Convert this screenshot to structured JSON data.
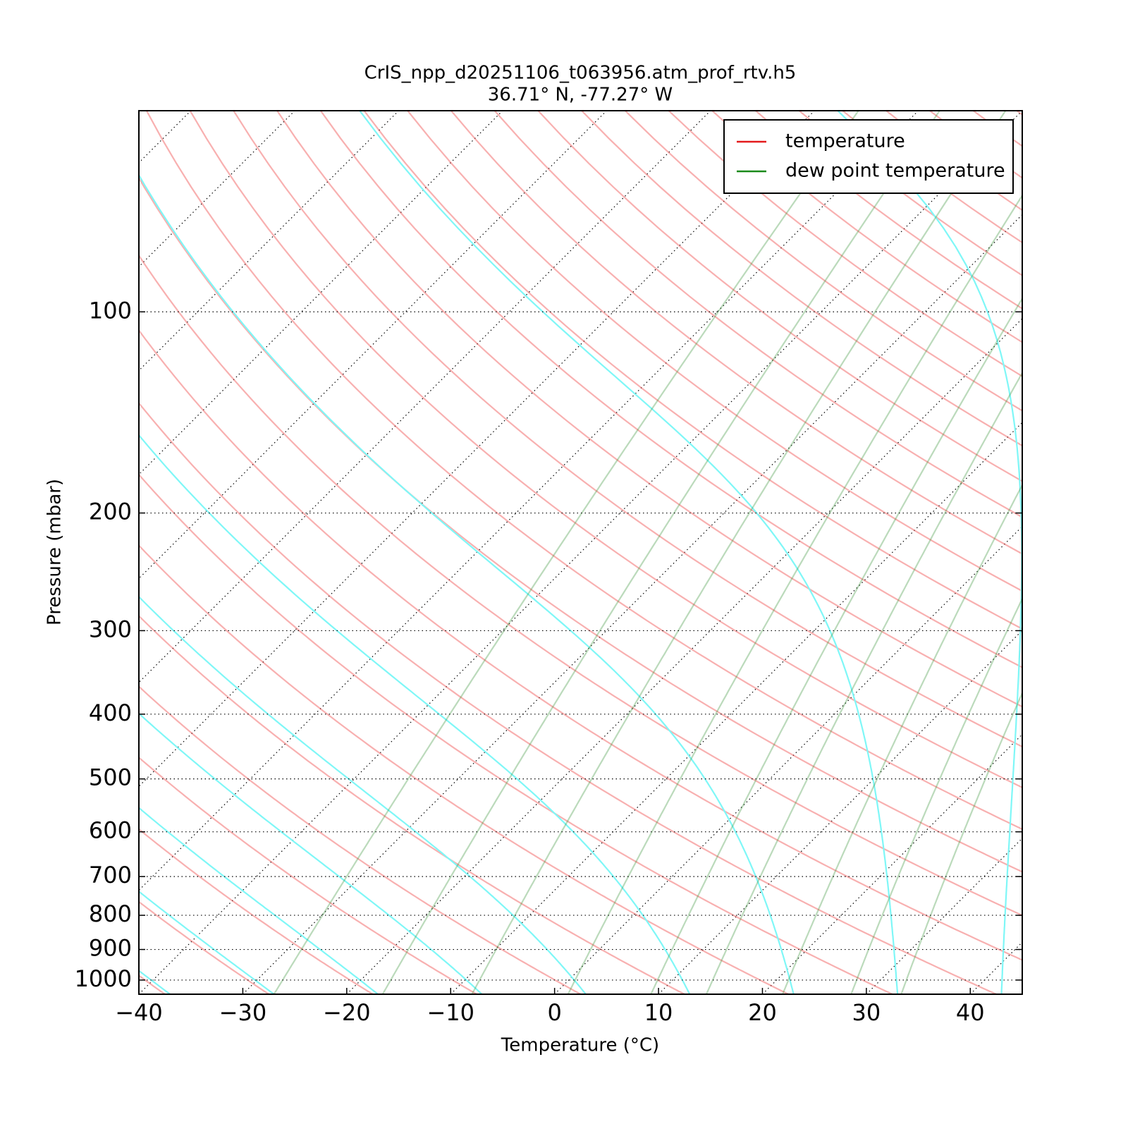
{
  "chart_data": {
    "type": "skewt",
    "title": "CrIS_npp_d20251106_t063956.atm_prof_rtv.h5",
    "subtitle": "36.71° N, -77.27° W",
    "xlabel": "Temperature (°C)",
    "ylabel": "Pressure (mbar)",
    "xlim": [
      -40,
      45
    ],
    "ylim": [
      1050,
      50
    ],
    "log_y": true,
    "xticks": [
      {
        "value": -40,
        "label": "−40"
      },
      {
        "value": -30,
        "label": "−30"
      },
      {
        "value": -20,
        "label": "−20"
      },
      {
        "value": -10,
        "label": "−10"
      },
      0,
      10,
      20,
      30,
      40
    ],
    "yticks": [
      100,
      200,
      300,
      400,
      500,
      600,
      700,
      800,
      900,
      1000
    ],
    "grid": true,
    "legend": "upper right",
    "series": [
      {
        "name": "temperature",
        "color": "#e31a1c"
      },
      {
        "name": "dew point temperature",
        "color": "#1a8a1a"
      }
    ]
  }
}
